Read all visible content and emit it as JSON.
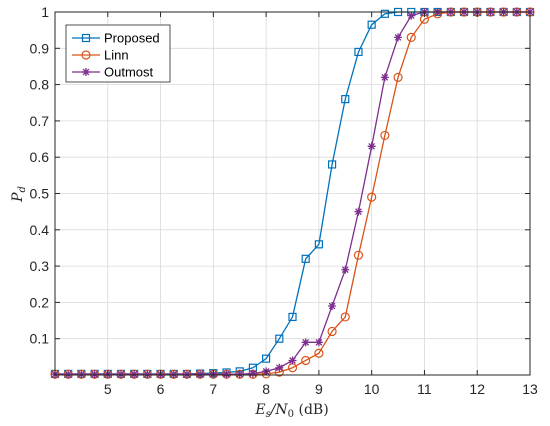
{
  "chart_data": {
    "type": "line",
    "x": [
      4,
      4.25,
      4.5,
      4.75,
      5,
      5.25,
      5.5,
      5.75,
      6,
      6.25,
      6.5,
      6.75,
      7,
      7.25,
      7.5,
      7.75,
      8,
      8.25,
      8.5,
      8.75,
      9,
      9.25,
      9.5,
      9.75,
      10,
      10.25,
      10.5,
      10.75,
      11,
      11.25,
      11.5,
      11.75,
      12,
      12.25,
      12.5,
      12.75,
      13
    ],
    "xlim": [
      4,
      13
    ],
    "ylim": [
      0,
      1
    ],
    "xticks": [
      5,
      6,
      7,
      8,
      9,
      10,
      11,
      12,
      13
    ],
    "xtick_labels": [
      "5",
      "6",
      "7",
      "8",
      "9",
      "10",
      "11",
      "12",
      "13"
    ],
    "yticks": [
      0.1,
      0.2,
      0.3,
      0.4,
      0.5,
      0.6,
      0.7,
      0.8,
      0.9,
      1
    ],
    "ytick_labels": [
      "0.1",
      "0.2",
      "0.3",
      "0.4",
      "0.5",
      "0.6",
      "0.7",
      "0.8",
      "0.9",
      "1"
    ],
    "xlabel": {
      "main": "E",
      "sub": "s",
      "rest": "/N",
      "sub2": "0",
      "unit": " (dB)"
    },
    "ylabel": {
      "main": "P",
      "sub": "d"
    },
    "grid": true,
    "legend_position": "top-left",
    "series": [
      {
        "name": "Proposed",
        "color": "#0072BD",
        "marker": "square",
        "values": [
          0.003,
          0.003,
          0.003,
          0.003,
          0.003,
          0.003,
          0.003,
          0.003,
          0.003,
          0.003,
          0.003,
          0.004,
          0.005,
          0.007,
          0.01,
          0.02,
          0.045,
          0.1,
          0.16,
          0.32,
          0.36,
          0.58,
          0.76,
          0.89,
          0.965,
          0.995,
          1,
          1,
          1,
          1,
          1,
          1,
          1,
          1,
          1,
          1,
          1
        ]
      },
      {
        "name": "Linn",
        "color": "#D95319",
        "marker": "circle",
        "values": [
          0.002,
          0.002,
          0.002,
          0.002,
          0.002,
          0.002,
          0.002,
          0.002,
          0.002,
          0.002,
          0.002,
          0.002,
          0.002,
          0.002,
          0.002,
          0.002,
          0.003,
          0.008,
          0.02,
          0.04,
          0.06,
          0.12,
          0.16,
          0.33,
          0.49,
          0.66,
          0.82,
          0.93,
          0.98,
          0.995,
          1,
          1,
          1,
          1,
          1,
          1,
          1
        ]
      },
      {
        "name": "Outmost",
        "color": "#7E2F8E",
        "marker": "asterisk",
        "values": [
          0.002,
          0.002,
          0.002,
          0.002,
          0.002,
          0.002,
          0.002,
          0.002,
          0.002,
          0.002,
          0.002,
          0.002,
          0.002,
          0.002,
          0.002,
          0.004,
          0.01,
          0.02,
          0.04,
          0.09,
          0.09,
          0.19,
          0.29,
          0.45,
          0.63,
          0.82,
          0.93,
          0.99,
          1,
          1,
          1,
          1,
          1,
          1,
          1,
          1,
          1
        ]
      }
    ]
  }
}
